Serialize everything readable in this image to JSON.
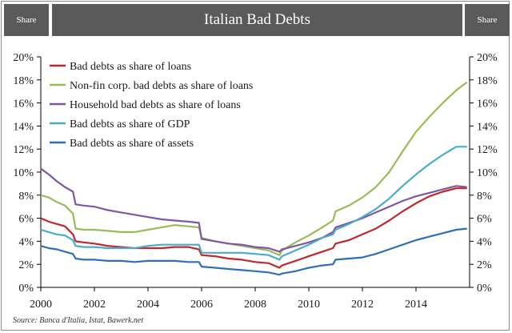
{
  "header": {
    "share_left": "Share",
    "share_right": "Share",
    "title": "Italian Bad Debts"
  },
  "source": "Source: Banca d'Italia, Istat, Bawerk.net",
  "colors": {
    "header_bg": "#5a5a5a",
    "axis": "#000000"
  },
  "chart_data": {
    "type": "line",
    "title": "Italian Bad Debts",
    "xlabel": "",
    "ylabel": "",
    "xlim": [
      2000,
      2016
    ],
    "ylim": [
      0,
      20
    ],
    "x_ticks": [
      "2000",
      "2002",
      "2004",
      "2006",
      "2008",
      "2010",
      "2012",
      "2014"
    ],
    "x_tick_values": [
      2000,
      2002,
      2004,
      2006,
      2008,
      2010,
      2012,
      2014
    ],
    "y_ticks": [
      "0%",
      "2%",
      "4%",
      "6%",
      "8%",
      "10%",
      "12%",
      "14%",
      "16%",
      "18%",
      "20%"
    ],
    "y_tick_values": [
      0,
      2,
      4,
      6,
      8,
      10,
      12,
      14,
      16,
      18,
      20
    ],
    "grid": false,
    "legend_position": "top-left",
    "series": [
      {
        "name": "Bad debts as share of loans",
        "color": "#c0282d",
        "points": [
          [
            2000.0,
            6.0
          ],
          [
            2000.3,
            5.7
          ],
          [
            2000.6,
            5.5
          ],
          [
            2000.9,
            5.3
          ],
          [
            2001.2,
            4.6
          ],
          [
            2001.3,
            4.0
          ],
          [
            2001.6,
            3.9
          ],
          [
            2002.0,
            3.8
          ],
          [
            2002.5,
            3.6
          ],
          [
            2003.0,
            3.5
          ],
          [
            2003.5,
            3.4
          ],
          [
            2004.0,
            3.4
          ],
          [
            2004.5,
            3.4
          ],
          [
            2005.0,
            3.5
          ],
          [
            2005.5,
            3.5
          ],
          [
            2005.9,
            3.3
          ],
          [
            2006.0,
            2.8
          ],
          [
            2006.5,
            2.7
          ],
          [
            2007.0,
            2.5
          ],
          [
            2007.5,
            2.4
          ],
          [
            2008.0,
            2.2
          ],
          [
            2008.5,
            2.1
          ],
          [
            2008.9,
            1.7
          ],
          [
            2009.0,
            1.9
          ],
          [
            2009.5,
            2.3
          ],
          [
            2010.0,
            2.7
          ],
          [
            2010.5,
            3.1
          ],
          [
            2010.9,
            3.4
          ],
          [
            2011.0,
            3.8
          ],
          [
            2011.5,
            4.1
          ],
          [
            2012.0,
            4.6
          ],
          [
            2012.5,
            5.1
          ],
          [
            2013.0,
            5.8
          ],
          [
            2013.5,
            6.6
          ],
          [
            2014.0,
            7.3
          ],
          [
            2014.5,
            7.9
          ],
          [
            2015.0,
            8.3
          ],
          [
            2015.5,
            8.6
          ],
          [
            2015.9,
            8.6
          ]
        ]
      },
      {
        "name": "Non-fin corp. bad debts as share of loans",
        "color": "#9bbb59",
        "points": [
          [
            2000.0,
            8.0
          ],
          [
            2000.3,
            7.8
          ],
          [
            2000.6,
            7.4
          ],
          [
            2000.9,
            7.1
          ],
          [
            2001.2,
            6.4
          ],
          [
            2001.3,
            5.1
          ],
          [
            2001.6,
            5.0
          ],
          [
            2002.0,
            5.0
          ],
          [
            2002.5,
            4.9
          ],
          [
            2003.0,
            4.8
          ],
          [
            2003.5,
            4.8
          ],
          [
            2004.0,
            5.0
          ],
          [
            2004.5,
            5.2
          ],
          [
            2005.0,
            5.4
          ],
          [
            2005.5,
            5.3
          ],
          [
            2005.9,
            5.2
          ],
          [
            2006.0,
            4.3
          ],
          [
            2006.5,
            4.0
          ],
          [
            2007.0,
            3.8
          ],
          [
            2007.5,
            3.6
          ],
          [
            2008.0,
            3.4
          ],
          [
            2008.5,
            3.2
          ],
          [
            2008.9,
            2.8
          ],
          [
            2009.0,
            3.2
          ],
          [
            2009.5,
            3.9
          ],
          [
            2010.0,
            4.5
          ],
          [
            2010.5,
            5.2
          ],
          [
            2010.9,
            5.8
          ],
          [
            2011.0,
            6.6
          ],
          [
            2011.5,
            7.1
          ],
          [
            2012.0,
            7.8
          ],
          [
            2012.5,
            8.7
          ],
          [
            2013.0,
            10.0
          ],
          [
            2013.5,
            11.8
          ],
          [
            2014.0,
            13.5
          ],
          [
            2014.5,
            14.8
          ],
          [
            2015.0,
            16.0
          ],
          [
            2015.5,
            17.1
          ],
          [
            2015.9,
            17.8
          ]
        ]
      },
      {
        "name": "Household bad debts as share of loans",
        "color": "#7e57a3",
        "points": [
          [
            2000.0,
            10.3
          ],
          [
            2000.3,
            9.8
          ],
          [
            2000.6,
            9.2
          ],
          [
            2000.9,
            8.7
          ],
          [
            2001.2,
            8.3
          ],
          [
            2001.3,
            7.2
          ],
          [
            2001.6,
            7.1
          ],
          [
            2002.0,
            7.0
          ],
          [
            2002.5,
            6.7
          ],
          [
            2003.0,
            6.5
          ],
          [
            2003.5,
            6.3
          ],
          [
            2004.0,
            6.1
          ],
          [
            2004.5,
            5.9
          ],
          [
            2005.0,
            5.8
          ],
          [
            2005.5,
            5.7
          ],
          [
            2005.9,
            5.6
          ],
          [
            2006.0,
            4.2
          ],
          [
            2006.5,
            4.0
          ],
          [
            2007.0,
            3.8
          ],
          [
            2007.5,
            3.7
          ],
          [
            2008.0,
            3.5
          ],
          [
            2008.5,
            3.4
          ],
          [
            2008.9,
            3.1
          ],
          [
            2009.0,
            3.3
          ],
          [
            2009.5,
            3.6
          ],
          [
            2010.0,
            3.9
          ],
          [
            2010.5,
            4.3
          ],
          [
            2010.9,
            4.8
          ],
          [
            2011.0,
            5.2
          ],
          [
            2011.5,
            5.6
          ],
          [
            2012.0,
            6.0
          ],
          [
            2012.5,
            6.5
          ],
          [
            2013.0,
            7.0
          ],
          [
            2013.5,
            7.5
          ],
          [
            2014.0,
            7.9
          ],
          [
            2014.5,
            8.2
          ],
          [
            2015.0,
            8.5
          ],
          [
            2015.5,
            8.8
          ],
          [
            2015.9,
            8.7
          ]
        ]
      },
      {
        "name": "Bad debts as share of GDP",
        "color": "#4bacc6",
        "points": [
          [
            2000.0,
            5.0
          ],
          [
            2000.3,
            4.8
          ],
          [
            2000.6,
            4.6
          ],
          [
            2000.9,
            4.5
          ],
          [
            2001.2,
            4.1
          ],
          [
            2001.3,
            3.6
          ],
          [
            2001.6,
            3.5
          ],
          [
            2002.0,
            3.5
          ],
          [
            2002.5,
            3.4
          ],
          [
            2003.0,
            3.4
          ],
          [
            2003.5,
            3.4
          ],
          [
            2004.0,
            3.6
          ],
          [
            2004.5,
            3.7
          ],
          [
            2005.0,
            3.7
          ],
          [
            2005.5,
            3.7
          ],
          [
            2005.9,
            3.7
          ],
          [
            2006.0,
            3.0
          ],
          [
            2006.5,
            3.0
          ],
          [
            2007.0,
            3.0
          ],
          [
            2007.5,
            3.0
          ],
          [
            2008.0,
            2.9
          ],
          [
            2008.5,
            2.8
          ],
          [
            2008.9,
            2.4
          ],
          [
            2009.0,
            2.7
          ],
          [
            2009.5,
            3.2
          ],
          [
            2010.0,
            3.7
          ],
          [
            2010.5,
            4.3
          ],
          [
            2010.9,
            4.6
          ],
          [
            2011.0,
            5.0
          ],
          [
            2011.5,
            5.5
          ],
          [
            2012.0,
            6.1
          ],
          [
            2012.5,
            6.8
          ],
          [
            2013.0,
            7.7
          ],
          [
            2013.5,
            8.8
          ],
          [
            2014.0,
            9.8
          ],
          [
            2014.5,
            10.7
          ],
          [
            2015.0,
            11.5
          ],
          [
            2015.5,
            12.2
          ],
          [
            2015.9,
            12.2
          ]
        ]
      },
      {
        "name": "Bad debts as share of assets",
        "color": "#2e6fb7",
        "points": [
          [
            2000.0,
            3.6
          ],
          [
            2000.3,
            3.4
          ],
          [
            2000.6,
            3.3
          ],
          [
            2000.9,
            3.1
          ],
          [
            2001.2,
            2.9
          ],
          [
            2001.3,
            2.5
          ],
          [
            2001.6,
            2.4
          ],
          [
            2002.0,
            2.4
          ],
          [
            2002.5,
            2.3
          ],
          [
            2003.0,
            2.3
          ],
          [
            2003.5,
            2.2
          ],
          [
            2004.0,
            2.3
          ],
          [
            2004.5,
            2.3
          ],
          [
            2005.0,
            2.3
          ],
          [
            2005.5,
            2.2
          ],
          [
            2005.9,
            2.2
          ],
          [
            2006.0,
            1.8
          ],
          [
            2006.5,
            1.7
          ],
          [
            2007.0,
            1.6
          ],
          [
            2007.5,
            1.5
          ],
          [
            2008.0,
            1.4
          ],
          [
            2008.5,
            1.3
          ],
          [
            2008.9,
            1.1
          ],
          [
            2009.0,
            1.2
          ],
          [
            2009.5,
            1.4
          ],
          [
            2010.0,
            1.7
          ],
          [
            2010.5,
            1.9
          ],
          [
            2010.9,
            2.0
          ],
          [
            2011.0,
            2.4
          ],
          [
            2011.5,
            2.5
          ],
          [
            2012.0,
            2.6
          ],
          [
            2012.5,
            2.9
          ],
          [
            2013.0,
            3.3
          ],
          [
            2013.5,
            3.7
          ],
          [
            2014.0,
            4.1
          ],
          [
            2014.5,
            4.4
          ],
          [
            2015.0,
            4.7
          ],
          [
            2015.5,
            5.0
          ],
          [
            2015.9,
            5.1
          ]
        ]
      }
    ]
  }
}
